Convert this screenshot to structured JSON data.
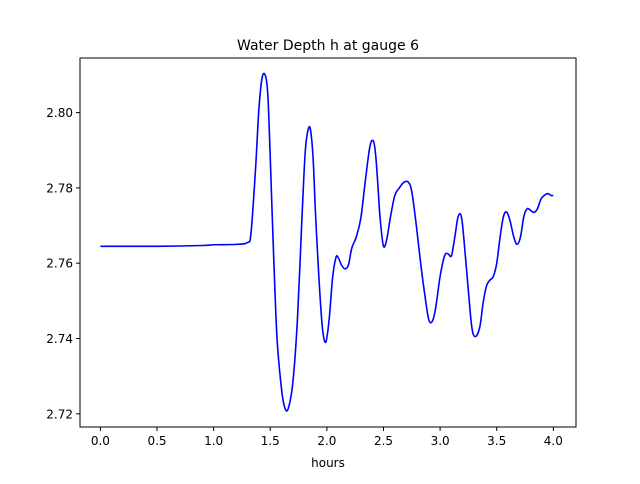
{
  "chart_data": {
    "type": "line",
    "title": "Water Depth h at gauge 6",
    "xlabel": "hours",
    "ylabel": "",
    "xlim": [
      -0.18,
      4.2
    ],
    "ylim": [
      2.7165,
      2.8145
    ],
    "grid": false,
    "legend": "none",
    "xticks": [
      0.0,
      0.5,
      1.0,
      1.5,
      2.0,
      2.5,
      3.0,
      3.5,
      4.0
    ],
    "xtick_labels": [
      "0.0",
      "0.5",
      "1.0",
      "1.5",
      "2.0",
      "2.5",
      "3.0",
      "3.5",
      "4.0"
    ],
    "yticks": [
      2.72,
      2.74,
      2.76,
      2.78,
      2.8
    ],
    "ytick_labels": [
      "2.72",
      "2.74",
      "2.76",
      "2.78",
      "2.80"
    ],
    "series": [
      {
        "color": "#0000ff",
        "x": [
          0.0,
          0.5,
          0.9,
          1.0,
          1.2,
          1.3,
          1.33,
          1.37,
          1.4,
          1.43,
          1.46,
          1.48,
          1.5,
          1.53,
          1.56,
          1.6,
          1.63,
          1.66,
          1.7,
          1.74,
          1.78,
          1.81,
          1.84,
          1.86,
          1.88,
          1.9,
          1.93,
          1.96,
          1.99,
          2.02,
          2.05,
          2.08,
          2.1,
          2.13,
          2.16,
          2.19,
          2.22,
          2.26,
          2.3,
          2.34,
          2.38,
          2.41,
          2.43,
          2.45,
          2.47,
          2.5,
          2.53,
          2.56,
          2.6,
          2.64,
          2.68,
          2.72,
          2.75,
          2.79,
          2.83,
          2.87,
          2.9,
          2.93,
          2.96,
          3.0,
          3.04,
          3.07,
          3.1,
          3.13,
          3.16,
          3.19,
          3.22,
          3.25,
          3.28,
          3.31,
          3.35,
          3.38,
          3.41,
          3.44,
          3.47,
          3.5,
          3.53,
          3.56,
          3.59,
          3.62,
          3.65,
          3.68,
          3.71,
          3.74,
          3.77,
          3.8,
          3.83,
          3.86,
          3.89,
          3.92,
          3.95,
          3.98,
          4.0
        ],
        "y": [
          2.7645,
          2.7645,
          2.7647,
          2.7649,
          2.765,
          2.7655,
          2.768,
          2.785,
          2.801,
          2.8095,
          2.8095,
          2.804,
          2.788,
          2.762,
          2.74,
          2.7265,
          2.7215,
          2.7215,
          2.7285,
          2.745,
          2.772,
          2.79,
          2.796,
          2.7945,
          2.787,
          2.773,
          2.756,
          2.743,
          2.739,
          2.745,
          2.756,
          2.7615,
          2.7615,
          2.7595,
          2.7585,
          2.7595,
          2.764,
          2.767,
          2.772,
          2.782,
          2.791,
          2.7925,
          2.789,
          2.781,
          2.772,
          2.7645,
          2.7665,
          2.772,
          2.778,
          2.78,
          2.7815,
          2.7815,
          2.779,
          2.77,
          2.7595,
          2.7505,
          2.745,
          2.7445,
          2.748,
          2.7565,
          2.762,
          2.7625,
          2.762,
          2.767,
          2.7725,
          2.772,
          2.763,
          2.7525,
          2.743,
          2.7405,
          2.743,
          2.7495,
          2.754,
          2.7555,
          2.7565,
          2.76,
          2.767,
          2.7725,
          2.7735,
          2.771,
          2.767,
          2.765,
          2.767,
          2.7725,
          2.7745,
          2.774,
          2.7735,
          2.7745,
          2.777,
          2.778,
          2.7785,
          2.778,
          2.778
        ]
      }
    ]
  }
}
